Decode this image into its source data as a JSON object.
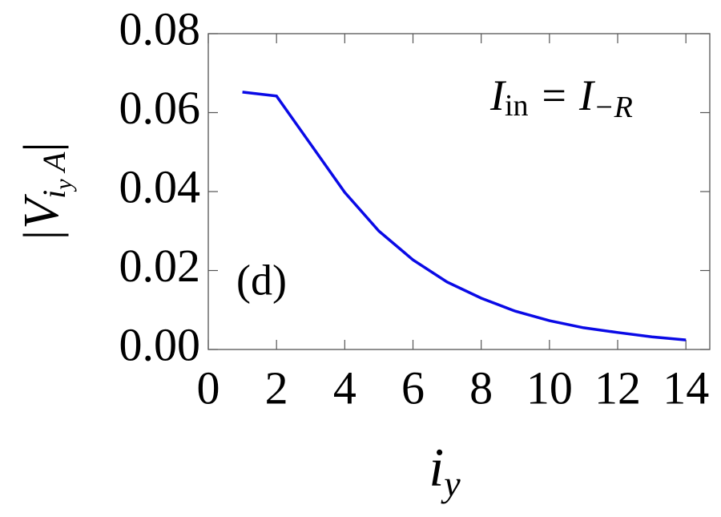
{
  "chart_data": {
    "type": "line",
    "x_label": [
      "i",
      "y"
    ],
    "y_label": [
      "|V",
      "i",
      "y",
      " A",
      "|"
    ],
    "annotation": [
      "I",
      "in",
      " = I",
      "−R"
    ],
    "panel_label": "(d)",
    "x": [
      1,
      2,
      3,
      4,
      5,
      6,
      7,
      8,
      9,
      10,
      11,
      12,
      13,
      14
    ],
    "series": [
      {
        "color": "#0a0ae6",
        "values": [
          0.0652,
          0.0642,
          0.052,
          0.0398,
          0.03,
          0.0227,
          0.0171,
          0.013,
          0.0097,
          0.0073,
          0.0055,
          0.0043,
          0.0032,
          0.0024
        ]
      }
    ],
    "xlim": [
      0,
      14.7
    ],
    "ylim": [
      0,
      0.08
    ],
    "xticks": [
      0,
      2,
      4,
      6,
      8,
      10,
      12,
      14
    ],
    "yticks": [
      {
        "value": 0,
        "label": "0.00"
      },
      {
        "value": 0.02,
        "label": "0.02"
      },
      {
        "value": 0.04,
        "label": "0.04"
      },
      {
        "value": 0.06,
        "label": "0.06"
      },
      {
        "value": 0.08,
        "label": "0.08"
      }
    ]
  }
}
